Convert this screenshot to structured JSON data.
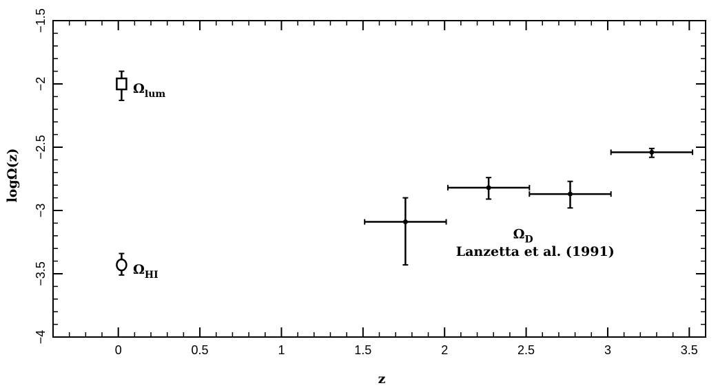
{
  "chart_data": {
    "type": "scatter",
    "title": "",
    "xlabel": "z",
    "ylabel": "logΩ(z)",
    "xlim": [
      -0.4,
      3.6
    ],
    "ylim": [
      -4.0,
      -1.5
    ],
    "xticks": [
      0,
      0.5,
      1,
      1.5,
      2,
      2.5,
      3,
      3.5
    ],
    "xtick_labels": [
      "0",
      "0.5",
      "1",
      "1.5",
      "2",
      "2.5",
      "3",
      "3.5"
    ],
    "yticks": [
      -4,
      -3.5,
      -3,
      -2.5,
      -2,
      -1.5
    ],
    "ytick_labels": [
      "−4",
      "−3.5",
      "−3",
      "−2.5",
      "−2",
      "−1.5"
    ],
    "grid": false,
    "series": [
      {
        "name": "Ωlum",
        "marker": "square",
        "points": [
          {
            "x": 0.02,
            "y": -2.0,
            "yerr_low": 0.13,
            "yerr_high": 0.1
          }
        ]
      },
      {
        "name": "ΩHI",
        "marker": "circle",
        "points": [
          {
            "x": 0.02,
            "y": -3.43,
            "yerr_low": 0.08,
            "yerr_high": 0.09
          }
        ]
      },
      {
        "name": "ΩD",
        "marker": "dot",
        "points": [
          {
            "x": 1.76,
            "y": -3.09,
            "xerr_low": 0.25,
            "xerr_high": 0.25,
            "yerr_low": 0.34,
            "yerr_high": 0.19
          },
          {
            "x": 2.27,
            "y": -2.82,
            "xerr_low": 0.25,
            "xerr_high": 0.25,
            "yerr_low": 0.09,
            "yerr_high": 0.08
          },
          {
            "x": 2.77,
            "y": -2.87,
            "xerr_low": 0.25,
            "xerr_high": 0.25,
            "yerr_low": 0.11,
            "yerr_high": 0.1
          },
          {
            "x": 3.27,
            "y": -2.54,
            "xerr_low": 0.25,
            "xerr_high": 0.25,
            "yerr_low": 0.04,
            "yerr_high": 0.03
          }
        ]
      }
    ],
    "annotations": [
      {
        "id": "lum",
        "main": "Ω",
        "sub": "lum",
        "x": 0.09,
        "y": -2.07
      },
      {
        "id": "hi",
        "main": "Ω",
        "sub": "HI",
        "x": 0.09,
        "y": -3.5
      },
      {
        "id": "d",
        "main": "Ω",
        "sub": "D",
        "x": 2.42,
        "y": -3.22
      },
      {
        "id": "ref",
        "main": "Lanzetta et al. (1991)",
        "sub": "",
        "x": 2.07,
        "y": -3.36
      }
    ]
  }
}
